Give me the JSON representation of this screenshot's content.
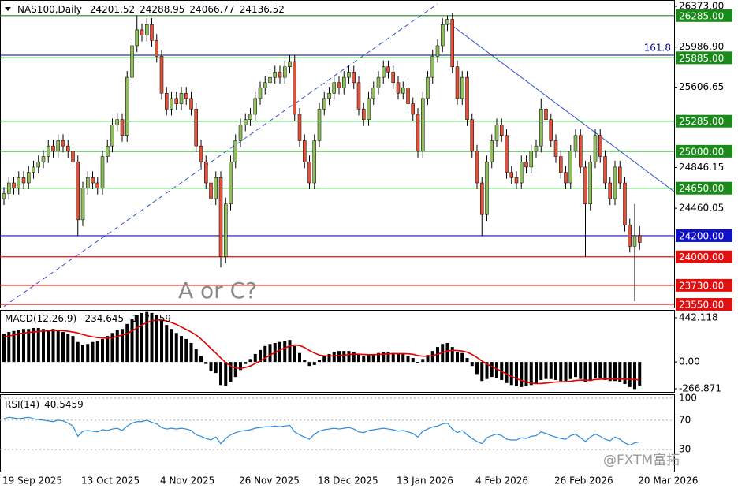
{
  "chart_data": {
    "type": "candlestick",
    "title": "NAS100,Daily",
    "categories": [
      "19 Sep 2025",
      null,
      null,
      null,
      null,
      null,
      null,
      null,
      null,
      null,
      null,
      null,
      null,
      null,
      null,
      null,
      "13 Oct 2025",
      null,
      null,
      null,
      null,
      null,
      null,
      null,
      null,
      null,
      null,
      null,
      null,
      null,
      null,
      null,
      "4 Nov 2025",
      null,
      null,
      null,
      null,
      null,
      null,
      null,
      null,
      null,
      null,
      null,
      null,
      null,
      null,
      null,
      "26 Nov 2025",
      null,
      null,
      null,
      null,
      null,
      null,
      null,
      null,
      null,
      null,
      null,
      null,
      null,
      null,
      null,
      "18 Dec 2025",
      null,
      null,
      null,
      null,
      null,
      null,
      null,
      null,
      null,
      null,
      null,
      null,
      null,
      null,
      null,
      "13 Jan 2026",
      null,
      null,
      null,
      null,
      null,
      null,
      null,
      null,
      null,
      null,
      null,
      null,
      null,
      null,
      null,
      "4 Feb 2026",
      null,
      null,
      null,
      null,
      null,
      null,
      null,
      null,
      null,
      null,
      null,
      null,
      null,
      null,
      null,
      "26 Feb 2026",
      null,
      null,
      null,
      null,
      null,
      null,
      null,
      null,
      null,
      null,
      null,
      null,
      null,
      null,
      null,
      null,
      "20 Mar 2026"
    ],
    "open": [
      24550,
      24600,
      24700,
      24650,
      24750,
      24700,
      24800,
      24850,
      24900,
      24950,
      25050,
      25000,
      25100,
      25050,
      25000,
      24900,
      24350,
      24650,
      24750,
      24700,
      24650,
      24950,
      25050,
      25250,
      25300,
      25150,
      25700,
      26000,
      26150,
      26100,
      26200,
      26050,
      25900,
      25550,
      25400,
      25500,
      25450,
      25550,
      25500,
      25400,
      25050,
      24900,
      24700,
      24550,
      24750,
      24000,
      24500,
      24900,
      25100,
      25250,
      25300,
      25350,
      25500,
      25600,
      25650,
      25700,
      25750,
      25700,
      25800,
      25850,
      25350,
      25100,
      24900,
      24700,
      25100,
      25400,
      25500,
      25550,
      25650,
      25600,
      25700,
      25750,
      25650,
      25400,
      25300,
      25500,
      25600,
      25700,
      25800,
      25750,
      25650,
      25550,
      25600,
      25450,
      25350,
      25000,
      25500,
      25700,
      25900,
      26000,
      26200,
      26250,
      25800,
      25500,
      25700,
      25300,
      25000,
      24700,
      24400,
      24900,
      25100,
      25250,
      25150,
      24800,
      24750,
      24700,
      24900,
      24850,
      25000,
      25050,
      25400,
      25300,
      25100,
      24950,
      24800,
      24700,
      25000,
      25150,
      24850,
      24500,
      24900,
      25150,
      24950,
      24700,
      24550,
      24850,
      24700,
      24300,
      24100,
      24201.52
    ],
    "high": [
      24660,
      24760,
      24760,
      24810,
      24810,
      24860,
      24910,
      24960,
      25010,
      25110,
      25110,
      25160,
      25160,
      25110,
      25060,
      24960,
      24710,
      24810,
      24810,
      24760,
      25010,
      25110,
      25310,
      25360,
      25360,
      25760,
      26060,
      26285,
      26210,
      26260,
      26260,
      26110,
      25960,
      25610,
      25560,
      25560,
      25610,
      25610,
      25560,
      25460,
      25110,
      24960,
      24760,
      24810,
      24810,
      24560,
      24960,
      25160,
      25310,
      25360,
      25410,
      25560,
      25660,
      25710,
      25760,
      25810,
      25810,
      25860,
      25910,
      25910,
      25410,
      25160,
      24960,
      25160,
      25460,
      25560,
      25610,
      25710,
      25710,
      25760,
      25810,
      25810,
      25710,
      25460,
      25560,
      25660,
      25760,
      25860,
      25860,
      25810,
      25710,
      25660,
      25660,
      25510,
      25410,
      25560,
      25760,
      25960,
      26060,
      26260,
      26285,
      26310,
      25860,
      25760,
      25760,
      25360,
      25060,
      24760,
      24960,
      25160,
      25310,
      25310,
      25210,
      24860,
      24810,
      24960,
      24960,
      25060,
      25110,
      25500,
      25460,
      25360,
      25160,
      25010,
      24860,
      25060,
      25210,
      25210,
      24910,
      24960,
      25210,
      25210,
      25010,
      24760,
      24910,
      24910,
      24760,
      24360,
      24500,
      24288.95
    ],
    "low": [
      24490,
      24540,
      24590,
      24590,
      24640,
      24640,
      24740,
      24790,
      24840,
      24890,
      24940,
      24940,
      24990,
      24940,
      24840,
      24200,
      24290,
      24590,
      24640,
      24590,
      24590,
      24890,
      24990,
      25190,
      25090,
      25090,
      25640,
      25940,
      26040,
      26040,
      25990,
      25840,
      25490,
      25340,
      25340,
      25390,
      25390,
      25440,
      25340,
      24990,
      24840,
      24640,
      24490,
      24490,
      23900,
      23940,
      24440,
      24840,
      25040,
      25190,
      25240,
      25290,
      25440,
      25540,
      25590,
      25640,
      25640,
      25640,
      25740,
      25290,
      25040,
      24840,
      24640,
      24640,
      25040,
      25340,
      25440,
      25490,
      25540,
      25540,
      25640,
      25590,
      25340,
      25240,
      25240,
      25440,
      25540,
      25640,
      25690,
      25590,
      25490,
      25490,
      25390,
      25290,
      24940,
      24940,
      25440,
      25640,
      25840,
      25940,
      26140,
      25740,
      25440,
      25440,
      25240,
      24940,
      24640,
      24200,
      24340,
      24840,
      25040,
      25090,
      24740,
      24690,
      24640,
      24640,
      24790,
      24790,
      24940,
      24990,
      25240,
      25040,
      24890,
      24740,
      24640,
      24640,
      24940,
      24790,
      24000,
      24440,
      24840,
      24890,
      24640,
      24490,
      24490,
      24640,
      24240,
      24040,
      23580,
      24066.77
    ],
    "close": [
      24600,
      24700,
      24650,
      24750,
      24700,
      24800,
      24850,
      24900,
      24950,
      25050,
      25000,
      25100,
      25050,
      25000,
      24900,
      24350,
      24650,
      24750,
      24700,
      24650,
      24950,
      25050,
      25250,
      25300,
      25150,
      25700,
      26000,
      26150,
      26100,
      26200,
      26050,
      25900,
      25550,
      25400,
      25500,
      25450,
      25550,
      25500,
      25400,
      25050,
      24900,
      24700,
      24550,
      24750,
      24000,
      24500,
      24900,
      25100,
      25250,
      25300,
      25350,
      25500,
      25600,
      25650,
      25700,
      25750,
      25700,
      25800,
      25850,
      25350,
      25100,
      24900,
      24700,
      25100,
      25400,
      25500,
      25550,
      25650,
      25600,
      25700,
      25750,
      25650,
      25400,
      25300,
      25500,
      25600,
      25700,
      25800,
      25750,
      25650,
      25550,
      25600,
      25450,
      25350,
      25000,
      25500,
      25700,
      25900,
      26000,
      26200,
      26250,
      25800,
      25500,
      25700,
      25300,
      25000,
      24700,
      24400,
      24900,
      25100,
      25250,
      25150,
      24800,
      24750,
      24700,
      24900,
      24850,
      25000,
      25050,
      25400,
      25300,
      25100,
      24950,
      24800,
      24700,
      25000,
      25150,
      24850,
      24500,
      24900,
      25150,
      24950,
      24700,
      24550,
      24850,
      24700,
      24300,
      24100,
      24200,
      24136.52
    ],
    "up_color": "#8fbf5a",
    "down_color": "#e0533a",
    "ylim": [
      23520,
      26403
    ],
    "yticks": [
      {
        "value": 26373,
        "label": "26373.00"
      },
      {
        "value": 25986.9,
        "label": "25986.90"
      },
      {
        "value": 25606.65,
        "label": "25606.65"
      },
      {
        "value": 24846.15,
        "label": "24846.15"
      },
      {
        "value": 24460.05,
        "label": "24460.05"
      }
    ],
    "levels": [
      {
        "value": 26285,
        "label": "26285.00",
        "color": "#1a8a1a"
      },
      {
        "value": 25885,
        "label": "25885.00",
        "color": "#1a8a1a"
      },
      {
        "value": 25285,
        "label": "25285.00",
        "color": "#1a8a1a"
      },
      {
        "value": 25000,
        "label": "25000.00",
        "color": "#1a8a1a"
      },
      {
        "value": 24650,
        "label": "24650.00",
        "color": "#1a8a1a"
      },
      {
        "value": 24200,
        "label": "24200.00",
        "color": "#1010c8"
      },
      {
        "value": 24000,
        "label": "24000.00",
        "color": "#e01010"
      },
      {
        "value": 23730,
        "label": "23730.00",
        "color": "#e01010"
      },
      {
        "value": 23550,
        "label": "23550.00",
        "color": "#e01010"
      }
    ],
    "fib": {
      "value": 25910,
      "label": "161.8",
      "color": "#000080"
    },
    "trendlines": [
      {
        "from": [
          0,
          23530
        ],
        "to": [
          88,
          26396
        ],
        "color": "#3050d0",
        "dashed": true
      },
      {
        "from": [
          90,
          26224
        ],
        "to": [
          136,
          24618
        ],
        "color": "#3050d0",
        "dashed": false
      }
    ],
    "annotation": "A or C?",
    "watermark": "@FXTM富拓",
    "macd": {
      "name": "MACD(12,26,9)",
      "ylim": [
        -298.4,
        497.3
      ],
      "yticks": [
        442.118,
        {
          "value": 0,
          "label": "0.00"
        },
        -266.871
      ],
      "histogram_color": "#000000",
      "signal_color": "#e00000",
      "histogram": [
        280,
        300,
        310,
        320,
        330,
        330,
        340,
        340,
        330,
        320,
        330,
        320,
        300,
        280,
        260,
        200,
        170,
        180,
        200,
        210,
        230,
        260,
        290,
        320,
        330,
        380,
        430,
        470,
        490,
        500,
        490,
        470,
        420,
        370,
        330,
        290,
        260,
        230,
        190,
        130,
        60,
        -20,
        -90,
        -110,
        -230,
        -240,
        -200,
        -150,
        -80,
        -20,
        30,
        80,
        120,
        160,
        180,
        190,
        200,
        210,
        220,
        160,
        90,
        20,
        -40,
        -30,
        20,
        60,
        80,
        100,
        110,
        110,
        110,
        100,
        80,
        60,
        70,
        80,
        90,
        100,
        100,
        90,
        80,
        80,
        60,
        40,
        -10,
        30,
        70,
        110,
        150,
        180,
        190,
        150,
        100,
        90,
        40,
        -40,
        -120,
        -190,
        -170,
        -150,
        -160,
        -180,
        -210,
        -230,
        -240,
        -250,
        -240,
        -230,
        -220,
        -180,
        -170,
        -170,
        -180,
        -190,
        -190,
        -170,
        -150,
        -170,
        -200,
        -190,
        -160,
        -160,
        -180,
        -190,
        -190,
        -200,
        -220,
        -250,
        -270,
        -234.645
      ],
      "signal": [
        250,
        260,
        270,
        280,
        290,
        295,
        300,
        305,
        310,
        312,
        314,
        315,
        313,
        308,
        300,
        290,
        275,
        262,
        252,
        244,
        240,
        240,
        245,
        255,
        270,
        285,
        310,
        340,
        370,
        395,
        410,
        420,
        420,
        410,
        395,
        375,
        350,
        325,
        300,
        270,
        230,
        185,
        135,
        90,
        40,
        -5,
        -40,
        -60,
        -65,
        -55,
        -40,
        -15,
        10,
        40,
        70,
        95,
        120,
        140,
        160,
        170,
        165,
        145,
        115,
        90,
        70,
        62,
        60,
        62,
        66,
        70,
        75,
        78,
        78,
        75,
        73,
        73,
        75,
        78,
        82,
        84,
        84,
        84,
        82,
        77,
        65,
        58,
        58,
        65,
        78,
        95,
        110,
        118,
        115,
        110,
        98,
        75,
        45,
        10,
        -20,
        -45,
        -70,
        -95,
        -120,
        -145,
        -165,
        -185,
        -200,
        -210,
        -215,
        -215,
        -210,
        -205,
        -200,
        -198,
        -196,
        -192,
        -185,
        -182,
        -182,
        -184,
        -175,
        -172,
        -170,
        -170,
        -170,
        -170,
        -171,
        -173,
        -175,
        -177.759
      ]
    },
    "rsi": {
      "name": "RSI(14)",
      "ylim": [
        0,
        100
      ],
      "yticks": [
        100,
        70,
        30
      ],
      "color": "#2a8adf",
      "values": [
        72,
        74,
        73,
        72,
        73,
        74,
        72,
        71,
        70,
        69,
        68,
        70,
        69,
        66,
        62,
        48,
        55,
        56,
        55,
        54,
        57,
        56,
        58,
        59,
        56,
        62,
        66,
        68,
        68,
        70,
        67,
        65,
        60,
        58,
        59,
        58,
        59,
        58,
        56,
        50,
        48,
        45,
        43,
        47,
        38,
        45,
        50,
        53,
        55,
        56,
        57,
        59,
        60,
        61,
        61,
        62,
        61,
        62,
        63,
        54,
        50,
        47,
        44,
        51,
        55,
        57,
        58,
        59,
        58,
        59,
        60,
        58,
        54,
        53,
        56,
        57,
        58,
        59,
        58,
        57,
        55,
        56,
        54,
        52,
        47,
        55,
        58,
        61,
        62,
        65,
        66,
        58,
        53,
        56,
        50,
        45,
        41,
        38,
        46,
        49,
        51,
        49,
        44,
        43,
        43,
        46,
        45,
        48,
        49,
        54,
        52,
        49,
        47,
        45,
        44,
        49,
        51,
        46,
        41,
        47,
        51,
        48,
        44,
        42,
        47,
        44,
        39,
        36,
        39,
        40.5459
      ]
    }
  }
}
